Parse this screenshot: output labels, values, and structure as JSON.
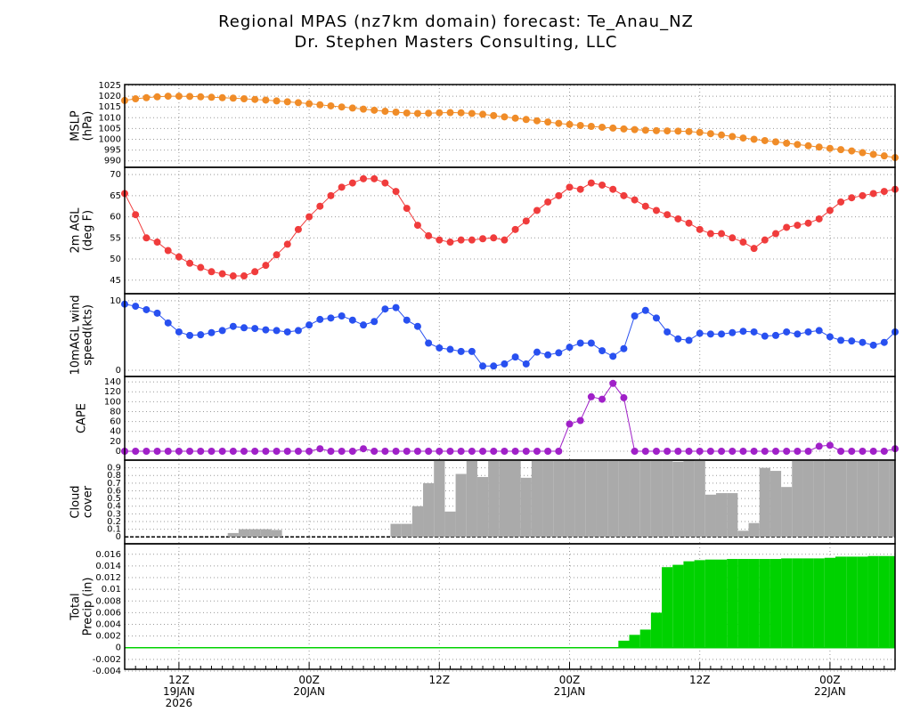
{
  "title": [
    "Regional MPAS (nz7km domain) forecast: Te_Anau_NZ",
    "Dr. Stephen Masters Consulting, LLC"
  ],
  "chart_data": [
    {
      "type": "line",
      "ylabel": [
        "MSLP",
        "(hPa)"
      ],
      "color": "#f08c28",
      "grid": true,
      "ylim": [
        987,
        1025.4
      ],
      "yticks": [
        990,
        995,
        1000,
        1005,
        1010,
        1015,
        1020,
        1025
      ],
      "values": [
        1018.0,
        1018.8,
        1019.3,
        1019.7,
        1020.0,
        1020.0,
        1019.9,
        1019.7,
        1019.5,
        1019.3,
        1019.1,
        1018.8,
        1018.5,
        1018.2,
        1017.8,
        1017.4,
        1017.0,
        1016.5,
        1016.0,
        1015.5,
        1015.0,
        1014.5,
        1014.0,
        1013.5,
        1013.0,
        1012.6,
        1012.2,
        1012.0,
        1012.1,
        1012.3,
        1012.4,
        1012.3,
        1012.0,
        1011.6,
        1011.0,
        1010.4,
        1009.8,
        1009.2,
        1008.6,
        1008.0,
        1007.4,
        1006.9,
        1006.4,
        1006.0,
        1005.6,
        1005.2,
        1004.8,
        1004.5,
        1004.2,
        1004.0,
        1003.9,
        1003.8,
        1003.6,
        1003.2,
        1002.6,
        1002.0,
        1001.3,
        1000.6,
        1000.0,
        999.4,
        998.8,
        998.2,
        997.6,
        997.0,
        996.4,
        995.8,
        995.2,
        994.6,
        993.8,
        993.0,
        992.3,
        991.5
      ]
    },
    {
      "type": "line",
      "ylabel": [
        "2m AGL",
        "(deg F)"
      ],
      "color": "#f03c3c",
      "grid": true,
      "ylim": [
        41.8,
        71.7
      ],
      "yticks": [
        45,
        50,
        55,
        60,
        65,
        70
      ],
      "values": [
        65.5,
        60.5,
        55,
        54,
        52,
        50.5,
        49,
        48,
        47,
        46.5,
        46,
        46,
        47,
        48.5,
        51,
        53.5,
        57,
        60,
        62.5,
        65,
        67,
        68,
        69,
        69,
        68,
        66,
        62,
        58,
        55.5,
        54.5,
        54,
        54.5,
        54.5,
        54.8,
        55,
        54.5,
        57,
        59,
        61.5,
        63.5,
        65,
        67,
        66.5,
        68,
        67.5,
        66.5,
        65,
        64,
        62.5,
        61.5,
        60.5,
        59.5,
        58.5,
        57,
        56,
        56,
        55,
        54,
        52.5,
        54.5,
        56,
        57.5,
        58,
        58.5,
        59.5,
        61.5,
        63.5,
        64.5,
        65,
        65.5,
        66,
        66.5
      ]
    },
    {
      "type": "line",
      "ylabel": [
        "10mAGL wind",
        "speed(kts)"
      ],
      "color": "#2850f0",
      "grid": true,
      "ylim": [
        -0.9,
        11
      ],
      "yticks": [
        0,
        10
      ],
      "values": [
        9.5,
        9.2,
        8.7,
        8.2,
        6.8,
        5.5,
        5,
        5.1,
        5.4,
        5.7,
        6.3,
        6.1,
        6,
        5.8,
        5.7,
        5.5,
        5.7,
        6.5,
        7.3,
        7.5,
        7.8,
        7.2,
        6.5,
        7,
        8.8,
        9,
        7.2,
        6.3,
        3.9,
        3.2,
        3,
        2.7,
        2.7,
        0.6,
        0.6,
        0.9,
        1.9,
        0.9,
        2.6,
        2.2,
        2.5,
        3.3,
        3.9,
        3.9,
        2.8,
        2,
        3.1,
        7.8,
        8.6,
        7.5,
        5.5,
        4.5,
        4.3,
        5.3,
        5.2,
        5.2,
        5.4,
        5.6,
        5.5,
        4.9,
        5,
        5.5,
        5.2,
        5.5,
        5.7,
        4.8,
        4.3,
        4.2,
        4,
        3.6,
        4,
        5.5
      ]
    },
    {
      "type": "line",
      "ylabel": [
        "CAPE"
      ],
      "color": "#a020c8",
      "grid": true,
      "ylim": [
        -18,
        151
      ],
      "yticks": [
        0,
        20,
        40,
        60,
        80,
        100,
        120,
        140
      ],
      "values": [
        0,
        0,
        0,
        0,
        0,
        0,
        0,
        0,
        0,
        0,
        0,
        0,
        0,
        0,
        0,
        0,
        0,
        0,
        5,
        0,
        0,
        0,
        5,
        0,
        0,
        0,
        0,
        0,
        0,
        0,
        0,
        0,
        0,
        0,
        0,
        0,
        0,
        0,
        0,
        0,
        0,
        55,
        62,
        110,
        105,
        137,
        108,
        0,
        0,
        0,
        0,
        0,
        0,
        0,
        0,
        0,
        0,
        0,
        0,
        0,
        0,
        0,
        0,
        0,
        10,
        12,
        0,
        0,
        0,
        0,
        0,
        5
      ]
    },
    {
      "type": "bar",
      "ylabel": [
        "Cloud",
        "cover"
      ],
      "color": "#aaaaaa",
      "grid": true,
      "ylim": [
        -0.09,
        1
      ],
      "yticks": [
        0,
        0.1,
        0.2,
        0.3,
        0.4,
        0.5,
        0.6,
        0.7,
        0.8,
        0.9
      ],
      "values": [
        0,
        0,
        0,
        0,
        0,
        0,
        0,
        0,
        0,
        0,
        0.05,
        0.1,
        0.1,
        0.1,
        0.09,
        0,
        0,
        0,
        0,
        0,
        0,
        0,
        0,
        0,
        0,
        0.17,
        0.17,
        0.4,
        0.7,
        1,
        0.33,
        0.82,
        1,
        0.78,
        1,
        1,
        1,
        0.77,
        1,
        1,
        1,
        1,
        1,
        1,
        1,
        1,
        1,
        1,
        1,
        1,
        1,
        0.98,
        0.99,
        1,
        0.55,
        0.57,
        0.57,
        0.08,
        0.18,
        0.9,
        0.86,
        0.65,
        1,
        1,
        1,
        1,
        1,
        1,
        1,
        1,
        1,
        1
      ]
    },
    {
      "type": "bar",
      "ylabel": [
        "Total",
        "Precip (in)"
      ],
      "color": "#00d200",
      "grid": true,
      "ylim": [
        -0.0037,
        0.0178
      ],
      "yticks": [
        -0.004,
        -0.002,
        0,
        0.002,
        0.004,
        0.006,
        0.008,
        0.01,
        0.012,
        0.014,
        0.016
      ],
      "values": [
        0,
        0,
        0,
        0,
        0,
        0,
        0,
        0,
        0,
        0,
        0,
        0,
        0,
        0,
        0,
        0,
        0,
        0,
        0,
        0,
        0,
        0,
        0,
        0,
        0,
        0,
        0,
        0,
        0,
        0,
        0,
        0,
        0,
        0,
        0,
        0,
        0,
        0,
        0,
        0,
        0,
        0,
        0,
        0,
        0,
        0,
        0.0012,
        0.0022,
        0.0031,
        0.006,
        0.0138,
        0.0142,
        0.0148,
        0.015,
        0.0151,
        0.0151,
        0.0152,
        0.0152,
        0.0152,
        0.0152,
        0.0152,
        0.0153,
        0.0153,
        0.0153,
        0.0153,
        0.0154,
        0.0156,
        0.0156,
        0.0156,
        0.0157,
        0.0157,
        0.0157
      ],
      "categories": [
        null,
        null,
        null,
        null,
        null,
        "12Z\n19JAN\n2026",
        null,
        null,
        null,
        null,
        null,
        null,
        null,
        null,
        null,
        null,
        null,
        "00Z\n20JAN",
        null,
        null,
        null,
        null,
        null,
        null,
        null,
        null,
        null,
        null,
        null,
        "12Z",
        null,
        null,
        null,
        null,
        null,
        null,
        null,
        null,
        null,
        null,
        null,
        "00Z\n21JAN",
        null,
        null,
        null,
        null,
        null,
        null,
        null,
        null,
        null,
        null,
        null,
        "12Z",
        null,
        null,
        null,
        null,
        null,
        null,
        null,
        null,
        null,
        null,
        null,
        "00Z\n22JAN",
        null,
        null,
        null,
        null,
        null,
        null
      ]
    }
  ]
}
